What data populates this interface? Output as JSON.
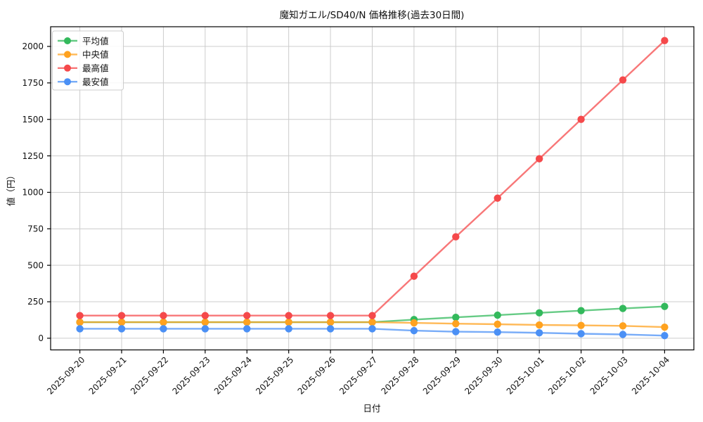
{
  "chart_data": {
    "type": "line",
    "title": "魔知ガエル/SD40/N 価格推移(過去30日間)",
    "xlabel": "日付",
    "ylabel": "値（円）",
    "x": [
      "2025-09-20",
      "2025-09-21",
      "2025-09-22",
      "2025-09-23",
      "2025-09-24",
      "2025-09-25",
      "2025-09-26",
      "2025-09-27",
      "2025-09-28",
      "2025-09-29",
      "2025-09-30",
      "2025-10-01",
      "2025-10-02",
      "2025-10-03",
      "2025-10-04"
    ],
    "series": [
      {
        "key": "average",
        "name": "平均値",
        "color": "#33b95c",
        "values": [
          110,
          110,
          110,
          110,
          110,
          110,
          110,
          110,
          128,
          143,
          158,
          174,
          189,
          204,
          218
        ]
      },
      {
        "key": "median",
        "name": "中央値",
        "color": "#ffa21f",
        "values": [
          110,
          110,
          110,
          110,
          110,
          110,
          110,
          110,
          105,
          100,
          96,
          91,
          88,
          85,
          76
        ]
      },
      {
        "key": "max",
        "name": "最高値",
        "color": "#f5494b",
        "values": [
          155,
          155,
          155,
          155,
          155,
          155,
          155,
          155,
          425,
          695,
          960,
          1230,
          1500,
          1770,
          2040
        ]
      },
      {
        "key": "min",
        "name": "最安値",
        "color": "#4b90f5",
        "values": [
          65,
          65,
          65,
          65,
          65,
          65,
          65,
          65,
          52,
          45,
          42,
          37,
          31,
          26,
          18
        ]
      }
    ],
    "yticks": [
      0,
      250,
      500,
      750,
      1000,
      1250,
      1500,
      1750,
      2000
    ],
    "ylim": [
      -80,
      2135
    ],
    "grid": true,
    "legend_position": "upper left",
    "colors": {
      "background": "#ffffff",
      "grid": "#cccccc",
      "spine": "#000000",
      "text": "#111111",
      "legend_border": "#cccccc"
    }
  }
}
